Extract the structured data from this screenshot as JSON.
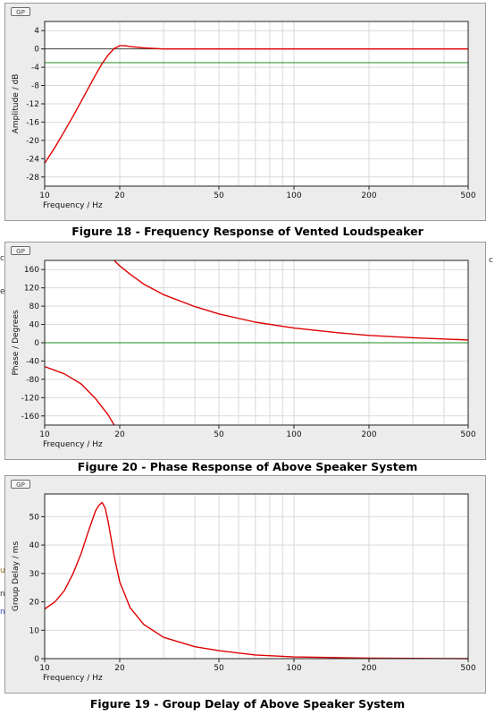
{
  "charts": [
    {
      "logo_text": "GP",
      "caption": "Figure 18 - Frequency Response of Vented Loudspeaker",
      "chart_data": {
        "type": "line",
        "xscale": "log",
        "xlim": [
          10,
          500
        ],
        "ylim": [
          -30,
          6
        ],
        "xlabel": "Frequency / Hz",
        "ylabel": "Amplitude / dB",
        "xticks": [
          10,
          20,
          50,
          100,
          200,
          500
        ],
        "yticks": [
          4,
          0,
          -4,
          -8,
          -12,
          -16,
          -20,
          -24,
          -28
        ],
        "hlines": [
          {
            "y": 0,
            "color": "#444444"
          },
          {
            "y": -3,
            "color": "#1e8c1e"
          }
        ],
        "grid": true,
        "series": [
          {
            "color": "#e00000",
            "x": [
              10,
              11,
              12,
              13,
              14,
              15,
              16,
              17,
              18,
              19,
              20,
              21,
              22,
              25,
              30,
              50,
              100,
              200,
              500
            ],
            "y": [
              -25,
              -21.5,
              -18,
              -14.7,
              -11.5,
              -8.5,
              -5.7,
              -3.2,
              -1.3,
              0.1,
              0.7,
              0.7,
              0.5,
              0.2,
              0,
              0,
              0,
              0,
              0
            ]
          }
        ]
      }
    },
    {
      "logo_text": "GP",
      "caption": "Figure 20 - Phase Response of Above Speaker System",
      "chart_data": {
        "type": "line",
        "xscale": "log",
        "xlim": [
          10,
          500
        ],
        "ylim": [
          -180,
          180
        ],
        "xlabel": "Frequency / Hz",
        "ylabel": "Phase / Degrees",
        "xticks": [
          10,
          20,
          50,
          100,
          200,
          500
        ],
        "yticks": [
          160,
          120,
          80,
          40,
          0,
          -40,
          -80,
          -120,
          -160
        ],
        "hlines": [
          {
            "y": 0,
            "color": "#1e8c1e"
          }
        ],
        "grid": true,
        "series": [
          {
            "color": "#e00000",
            "x": [
              10,
              12,
              14,
              16,
              18,
              19
            ],
            "y": [
              -52,
              -68,
              -90,
              -122,
              -158,
              -180
            ]
          },
          {
            "color": "#e00000",
            "x": [
              19,
              20,
              22,
              25,
              30,
              40,
              50,
              70,
              100,
              150,
              200,
              300,
              500
            ],
            "y": [
              180,
              168,
              150,
              128,
              105,
              79,
              63,
              45,
              32,
              22,
              16,
              11,
              6
            ]
          }
        ]
      }
    },
    {
      "logo_text": "GP",
      "caption": "Figure 19 - Group Delay of Above Speaker System",
      "chart_data": {
        "type": "line",
        "xscale": "log",
        "xlim": [
          10,
          500
        ],
        "ylim": [
          0,
          58
        ],
        "xlabel": "Frequency / Hz",
        "ylabel": "Group Delay / ms",
        "xticks": [
          10,
          20,
          50,
          100,
          200,
          500
        ],
        "yticks": [
          50,
          40,
          30,
          20,
          10,
          0
        ],
        "hlines": [],
        "grid": true,
        "series": [
          {
            "color": "#e00000",
            "x": [
              10,
              11,
              12,
              13,
              14,
              15,
              16,
              16.5,
              17,
              17.5,
              18,
              19,
              20,
              22,
              25,
              30,
              40,
              50,
              70,
              100,
              200,
              500
            ],
            "y": [
              17.5,
              20,
              24,
              30,
              37,
              45,
              52,
              54,
              55,
              53,
              48,
              36,
              27,
              18,
              12,
              7.5,
              4.2,
              2.8,
              1.3,
              0.6,
              0.2,
              0
            ]
          }
        ]
      }
    }
  ],
  "edge_fragments": [
    {
      "text": "c",
      "color": "#333333"
    },
    {
      "text": "c",
      "color": "#333333"
    },
    {
      "text": "e",
      "color": "#333333"
    },
    {
      "text": "u",
      "color": "#333333"
    },
    {
      "text": "n",
      "color": "#333333"
    },
    {
      "text": "n",
      "color": "#2a45b0"
    }
  ]
}
